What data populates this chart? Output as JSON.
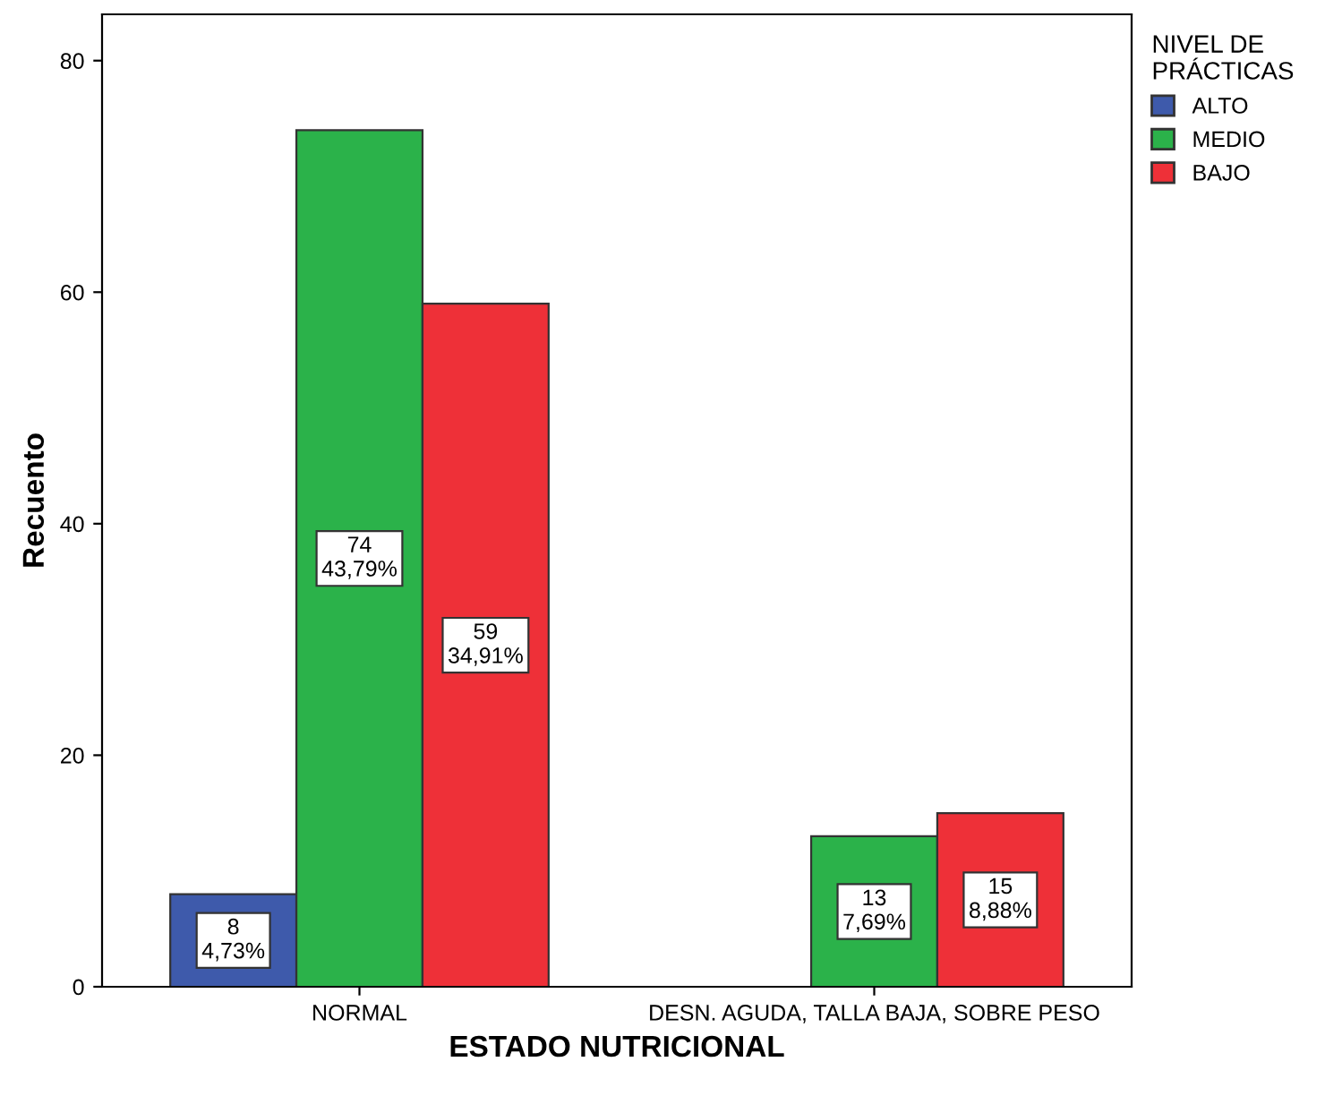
{
  "chart_data": {
    "type": "bar",
    "xlabel": "ESTADO NUTRICIONAL",
    "ylabel": "Recuento",
    "legend_title": "NIVEL DE\nPRÁCTICAS",
    "categories": [
      "NORMAL",
      "DESN. AGUDA, TALLA BAJA, SOBRE PESO"
    ],
    "series": [
      {
        "name": "ALTO",
        "color": "#3e5aab",
        "values": [
          8,
          null
        ],
        "value_labels": [
          "8\n4,73%",
          null
        ]
      },
      {
        "name": "MEDIO",
        "color": "#2bb24a",
        "values": [
          74,
          13
        ],
        "value_labels": [
          "74\n43,79%",
          "13\n7,69%"
        ]
      },
      {
        "name": "BAJO",
        "color": "#ee3038",
        "values": [
          59,
          15
        ],
        "value_labels": [
          "59\n34,91%",
          "15\n8,88%"
        ]
      }
    ],
    "ylim": [
      0,
      84
    ],
    "yticks": [
      0,
      20,
      40,
      60,
      80
    ],
    "grid": false,
    "legend": "right"
  }
}
